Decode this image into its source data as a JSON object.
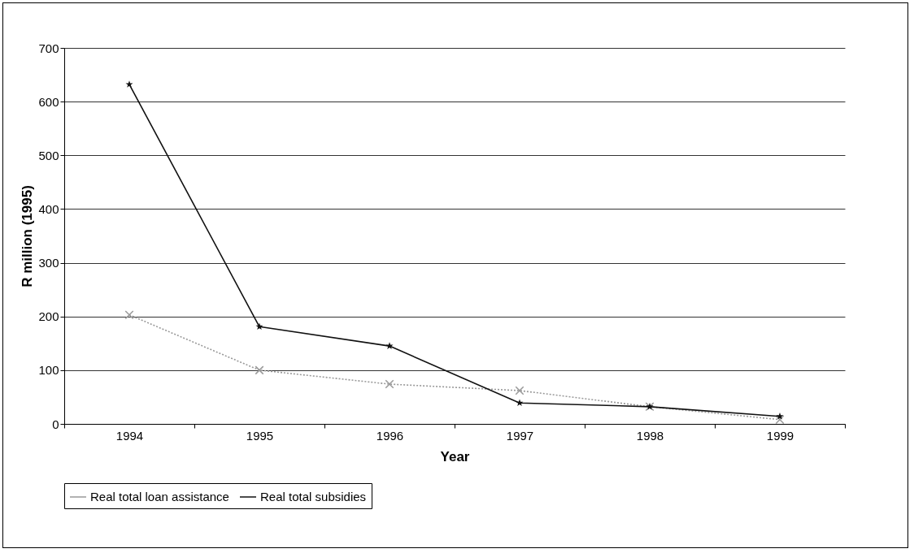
{
  "chart_data": {
    "type": "line",
    "xlabel": "Year",
    "ylabel": "R million (1995)",
    "categories": [
      "1994",
      "1995",
      "1996",
      "1997",
      "1998",
      "1999"
    ],
    "series": [
      {
        "name": "Real total loan assistance",
        "color": "#999999",
        "values": [
          203,
          100,
          74,
          62,
          32,
          8
        ],
        "marker": "cross",
        "line_style": "dotted"
      },
      {
        "name": "Real total subsidies",
        "color": "#111111",
        "values": [
          632,
          181,
          145,
          39,
          32,
          14
        ],
        "marker": "star",
        "line_style": "solid"
      }
    ],
    "ylim": [
      0,
      700
    ],
    "yticks": [
      0,
      100,
      200,
      300,
      400,
      500,
      600,
      700
    ],
    "grid": "y",
    "legend": "bottom"
  }
}
